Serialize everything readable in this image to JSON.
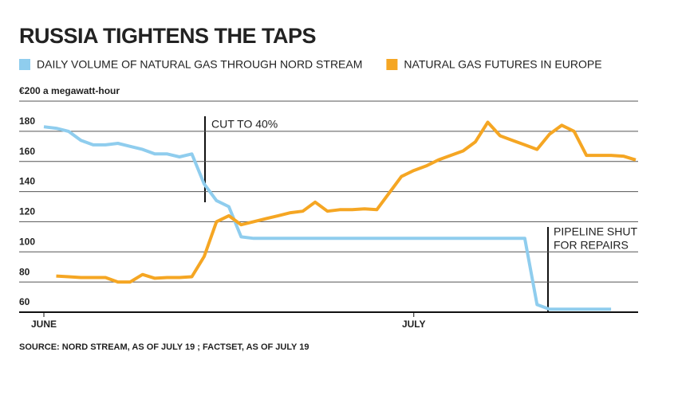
{
  "chart_data": {
    "type": "line",
    "title": "RUSSIA TIGHTENS THE TAPS",
    "source": "SOURCE: NORD STREAM, AS OF JULY 19 ; FACTSET, AS OF JULY 19",
    "categories": [
      "JUNE",
      null,
      null,
      null,
      null,
      null,
      null,
      null,
      null,
      null,
      null,
      null,
      null,
      null,
      null,
      null,
      null,
      null,
      null,
      null,
      null,
      null,
      null,
      null,
      null,
      null,
      null,
      null,
      null,
      null,
      "JULY",
      null,
      null,
      null,
      null,
      null,
      null,
      null,
      null,
      null,
      null,
      null,
      null,
      null,
      null,
      null,
      null,
      null,
      null
    ],
    "series": [
      {
        "name": "DAILY VOLUME OF NATURAL GAS THROUGH NORD STREAM",
        "color": "#8fcdee",
        "values": [
          183,
          182,
          180,
          174,
          171,
          171,
          172,
          170,
          168,
          165,
          165,
          163,
          165,
          145,
          134,
          130,
          110,
          109,
          109,
          109,
          109,
          109,
          109,
          109,
          109,
          109,
          109,
          109,
          109,
          109,
          109,
          109,
          109,
          109,
          109,
          109,
          109,
          109,
          109,
          109,
          65,
          62,
          62,
          62,
          62,
          62,
          62,
          null,
          null
        ]
      },
      {
        "name": "NATURAL GAS FUTURES IN EUROPE",
        "color": "#f5a623",
        "values": [
          null,
          84,
          83.5,
          83,
          83,
          83,
          80,
          80,
          85,
          82.5,
          83,
          83,
          83.5,
          97,
          120,
          124,
          118,
          120,
          122,
          124,
          126,
          127,
          133,
          127,
          128,
          128,
          128.5,
          128,
          139,
          150,
          154,
          157,
          161,
          164,
          167,
          173,
          186,
          177,
          174,
          171,
          168,
          178,
          184,
          180,
          164,
          164,
          164,
          163.5,
          161
        ]
      }
    ],
    "ylim": [
      60,
      200
    ],
    "yticks": [
      60,
      80,
      100,
      120,
      140,
      160,
      180,
      {
        "value": 200,
        "label": "€200 a megawatt-hour"
      }
    ],
    "grid": true,
    "annotations": [
      "CUT TO 40%",
      "PIPELINE SHUT",
      "FOR REPAIRS"
    ]
  }
}
